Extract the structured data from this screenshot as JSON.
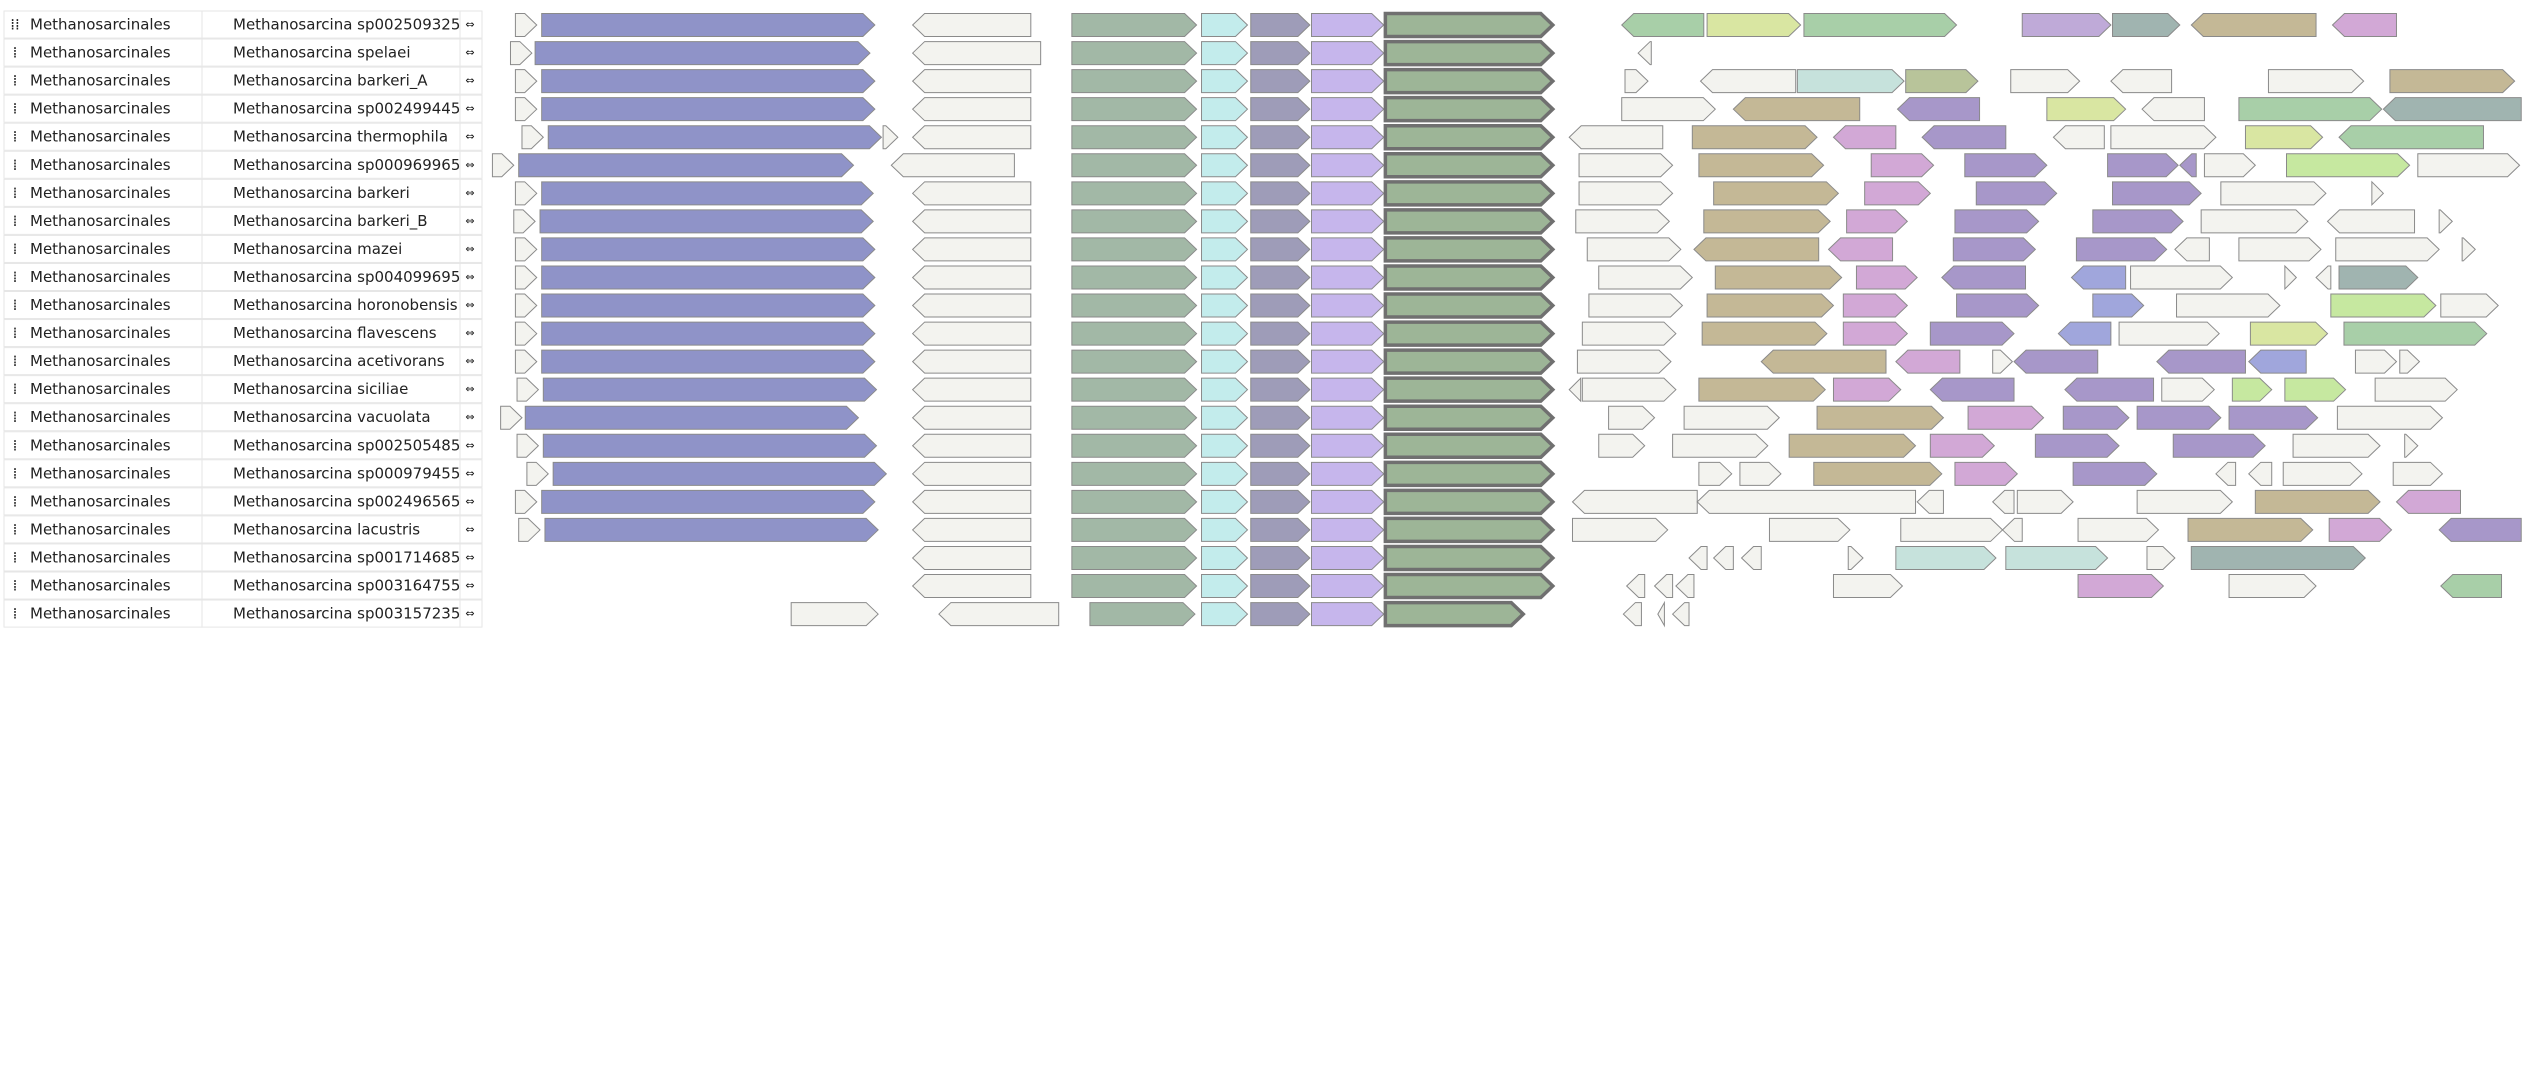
{
  "rows": [
    {
      "order": "Methanosarcinales",
      "species": "Methanosarcina sp002509325"
    },
    {
      "order": "Methanosarcinales",
      "species": "Methanosarcina spelaei"
    },
    {
      "order": "Methanosarcinales",
      "species": "Methanosarcina barkeri_A"
    },
    {
      "order": "Methanosarcinales",
      "species": "Methanosarcina sp002499445"
    },
    {
      "order": "Methanosarcinales",
      "species": "Methanosarcina thermophila"
    },
    {
      "order": "Methanosarcinales",
      "species": "Methanosarcina sp000969965"
    },
    {
      "order": "Methanosarcinales",
      "species": "Methanosarcina barkeri"
    },
    {
      "order": "Methanosarcinales",
      "species": "Methanosarcina barkeri_B"
    },
    {
      "order": "Methanosarcinales",
      "species": "Methanosarcina mazei"
    },
    {
      "order": "Methanosarcinales",
      "species": "Methanosarcina sp004099695"
    },
    {
      "order": "Methanosarcinales",
      "species": "Methanosarcina horonobensis"
    },
    {
      "order": "Methanosarcinales",
      "species": "Methanosarcina flavescens"
    },
    {
      "order": "Methanosarcinales",
      "species": "Methanosarcina acetivorans"
    },
    {
      "order": "Methanosarcinales",
      "species": "Methanosarcina siciliae"
    },
    {
      "order": "Methanosarcinales",
      "species": "Methanosarcina vacuolata"
    },
    {
      "order": "Methanosarcinales",
      "species": "Methanosarcina sp002505485"
    },
    {
      "order": "Methanosarcinales",
      "species": "Methanosarcina sp000979455"
    },
    {
      "order": "Methanosarcinales",
      "species": "Methanosarcina sp002496565"
    },
    {
      "order": "Methanosarcinales",
      "species": "Methanosarcina lacustris"
    },
    {
      "order": "Methanosarcinales",
      "species": "Methanosarcina sp001714685"
    },
    {
      "order": "Methanosarcinales",
      "species": "Methanosarcina sp003164755"
    },
    {
      "order": "Methanosarcinales",
      "species": "Methanosarcina sp003157235"
    }
  ]
}
